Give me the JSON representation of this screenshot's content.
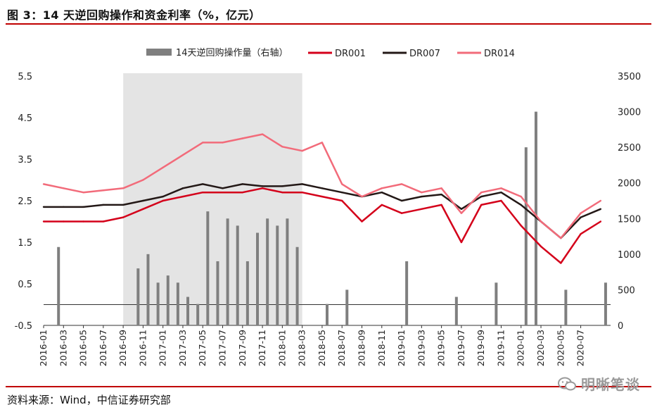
{
  "title": "图 3：14 天逆回购操作和资金利率（%，亿元）",
  "source": "资料来源：Wind，中信证券研究部",
  "watermark": "明晰笔谈",
  "colors": {
    "dr001": "#d4001a",
    "dr007": "#231816",
    "dr014": "#f26b7a",
    "bar": "#7f7f7f",
    "shade": "#d9d9d9",
    "rule": "#c00000"
  },
  "chart_data": {
    "type": "line",
    "title": "",
    "legend_position": "top",
    "legend": [
      "14天逆回购操作量（右轴）",
      "DR001",
      "DR007",
      "DR014"
    ],
    "x_ticks": [
      "2016-01",
      "2016-03",
      "2016-05",
      "2016-07",
      "2016-09",
      "2016-11",
      "2017-01",
      "2017-03",
      "2017-05",
      "2017-07",
      "2017-09",
      "2017-11",
      "2018-01",
      "2018-03",
      "2018-05",
      "2018-07",
      "2018-09",
      "2018-11",
      "2019-01",
      "2019-03",
      "2019-05",
      "2019-07",
      "2019-09",
      "2019-11",
      "2020-01",
      "2020-03",
      "2020-05",
      "2020-07"
    ],
    "y_left": {
      "ticks": [
        "5.5",
        "4.5",
        "3.5",
        "2.5",
        "1.5",
        "0.5",
        "-0.5"
      ],
      "range": [
        -0.5,
        5.5
      ]
    },
    "y_right": {
      "ticks": [
        "3500",
        "3000",
        "2500",
        "2000",
        "1500",
        "1000",
        "500",
        "0"
      ],
      "range": [
        0,
        3500
      ]
    },
    "shaded_period": {
      "from": "2016-09",
      "to": "2018-02"
    },
    "series": [
      {
        "name": "DR001",
        "axis": "left",
        "x": [
          "2016-01",
          "2016-03",
          "2016-05",
          "2016-07",
          "2016-09",
          "2016-11",
          "2017-01",
          "2017-03",
          "2017-05",
          "2017-07",
          "2017-09",
          "2017-11",
          "2018-01",
          "2018-03",
          "2018-05",
          "2018-07",
          "2018-09",
          "2018-11",
          "2019-01",
          "2019-03",
          "2019-05",
          "2019-07",
          "2019-09",
          "2019-11",
          "2020-01",
          "2020-03",
          "2020-05",
          "2020-07",
          "2020-09"
        ],
        "values": [
          2.0,
          2.0,
          2.0,
          2.0,
          2.1,
          2.3,
          2.5,
          2.6,
          2.7,
          2.7,
          2.7,
          2.8,
          2.7,
          2.7,
          2.6,
          2.5,
          2.0,
          2.4,
          2.2,
          2.3,
          2.4,
          1.5,
          2.4,
          2.5,
          1.9,
          1.4,
          1.0,
          1.7,
          2.0
        ]
      },
      {
        "name": "DR007",
        "axis": "left",
        "x": [
          "2016-01",
          "2016-03",
          "2016-05",
          "2016-07",
          "2016-09",
          "2016-11",
          "2017-01",
          "2017-03",
          "2017-05",
          "2017-07",
          "2017-09",
          "2017-11",
          "2018-01",
          "2018-03",
          "2018-05",
          "2018-07",
          "2018-09",
          "2018-11",
          "2019-01",
          "2019-03",
          "2019-05",
          "2019-07",
          "2019-09",
          "2019-11",
          "2020-01",
          "2020-03",
          "2020-05",
          "2020-07",
          "2020-09"
        ],
        "values": [
          2.35,
          2.35,
          2.35,
          2.4,
          2.4,
          2.5,
          2.6,
          2.8,
          2.9,
          2.8,
          2.9,
          2.85,
          2.85,
          2.9,
          2.8,
          2.7,
          2.6,
          2.7,
          2.5,
          2.6,
          2.65,
          2.3,
          2.6,
          2.7,
          2.4,
          2.0,
          1.6,
          2.1,
          2.3
        ]
      },
      {
        "name": "DR014",
        "axis": "left",
        "x": [
          "2016-01",
          "2016-03",
          "2016-05",
          "2016-07",
          "2016-09",
          "2016-11",
          "2017-01",
          "2017-03",
          "2017-05",
          "2017-07",
          "2017-09",
          "2017-11",
          "2018-01",
          "2018-03",
          "2018-05",
          "2018-07",
          "2018-09",
          "2018-11",
          "2019-01",
          "2019-03",
          "2019-05",
          "2019-07",
          "2019-09",
          "2019-11",
          "2020-01",
          "2020-03",
          "2020-05",
          "2020-07",
          "2020-09"
        ],
        "values": [
          2.9,
          2.8,
          2.7,
          2.75,
          2.8,
          3.0,
          3.3,
          3.6,
          3.9,
          3.9,
          4.0,
          4.1,
          3.8,
          3.7,
          3.9,
          2.9,
          2.6,
          2.8,
          2.9,
          2.7,
          2.8,
          2.2,
          2.7,
          2.8,
          2.6,
          2.0,
          1.6,
          2.2,
          2.5
        ]
      },
      {
        "name": "14天逆回购操作量（右轴）",
        "axis": "right",
        "type": "bar",
        "x": [
          "2016-02",
          "2016-10",
          "2016-11",
          "2016-12",
          "2017-01",
          "2017-02",
          "2017-03",
          "2017-04",
          "2017-05",
          "2017-06",
          "2017-07",
          "2017-08",
          "2017-09",
          "2017-10",
          "2017-11",
          "2017-12",
          "2018-01",
          "2018-02",
          "2018-05",
          "2018-07",
          "2019-01",
          "2019-06",
          "2019-10",
          "2020-01",
          "2020-02",
          "2020-05",
          "2020-09"
        ],
        "values": [
          1100,
          800,
          1000,
          600,
          700,
          600,
          400,
          300,
          1600,
          900,
          1500,
          1400,
          900,
          1300,
          1500,
          1400,
          1500,
          1100,
          300,
          500,
          900,
          400,
          600,
          2500,
          3000,
          500,
          600
        ]
      }
    ]
  }
}
